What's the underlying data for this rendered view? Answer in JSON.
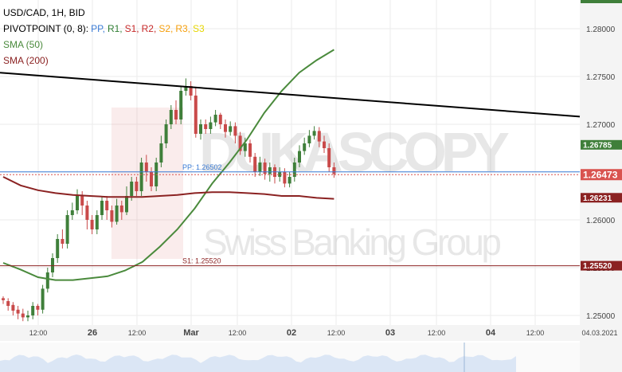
{
  "legend": {
    "symbol_line": "USD/CAD, 1H, BID",
    "pivot_label": "PIVOTPOINT (0, 8):",
    "pivot_items": [
      {
        "label": "PP,",
        "color": "#3a7bd5"
      },
      {
        "label": "R1,",
        "color": "#2e7d32"
      },
      {
        "label": "S1,",
        "color": "#c62828"
      },
      {
        "label": "R2,",
        "color": "#c62828"
      },
      {
        "label": "S2,",
        "color": "#f59e0b"
      },
      {
        "label": "R3,",
        "color": "#f59e0b"
      },
      {
        "label": "S3",
        "color": "#e6d600"
      }
    ],
    "sma50": "SMA (50)",
    "sma200": "SMA (200)"
  },
  "watermark": {
    "brand": "DUKASCOPY",
    "tagline": "Swiss Banking Group"
  },
  "chart_data": {
    "type": "candlestick",
    "title": "USD/CAD, 1H, BID",
    "y_ticks": [
      "1.25000",
      "1.25500",
      "1.26000",
      "1.26500",
      "1.27000",
      "1.27500",
      "1.28000"
    ],
    "ylim": [
      1.249,
      1.283
    ],
    "x_ticks": [
      "12:00",
      "26",
      "12:00",
      "Mar",
      "12:00",
      "02",
      "12:00",
      "03",
      "12:00",
      "04",
      "12:00",
      "04.03.2021"
    ],
    "grid": true,
    "series": [
      {
        "name": "SMA (50)",
        "color": "#4a8a3c",
        "values": [
          1.2555,
          1.2548,
          1.254,
          1.2537,
          1.2537,
          1.2539,
          1.2541,
          1.2547,
          1.2556,
          1.2572,
          1.259,
          1.2612,
          1.2638,
          1.266,
          1.2684,
          1.2712,
          1.2735,
          1.2754,
          1.2767,
          1.2778
        ]
      },
      {
        "name": "SMA (200)",
        "color": "#8b2222",
        "values": [
          1.2645,
          1.2636,
          1.2631,
          1.2628,
          1.2626,
          1.2625,
          1.2624,
          1.2624,
          1.2624,
          1.2625,
          1.2626,
          1.2628,
          1.2629,
          1.2629,
          1.2628,
          1.2627,
          1.2625,
          1.2625,
          1.2623,
          1.2622
        ]
      }
    ],
    "trendline": {
      "color": "#000000",
      "start": 1.2754,
      "end": 1.2708
    },
    "candles": [
      [
        1.2518,
        1.2516,
        1.252,
        1.2512
      ],
      [
        1.2515,
        1.251,
        1.2518,
        1.2505
      ],
      [
        1.2511,
        1.2505,
        1.2514,
        1.25
      ],
      [
        1.2506,
        1.2502,
        1.251,
        1.2496
      ],
      [
        1.2502,
        1.2498,
        1.2507,
        1.2494
      ],
      [
        1.2498,
        1.25,
        1.2505,
        1.2494
      ],
      [
        1.25,
        1.251,
        1.2514,
        1.2496
      ],
      [
        1.251,
        1.2506,
        1.2512,
        1.25
      ],
      [
        1.2506,
        1.2528,
        1.2532,
        1.2502
      ],
      [
        1.2528,
        1.2545,
        1.255,
        1.2524
      ],
      [
        1.2545,
        1.256,
        1.2565,
        1.254
      ],
      [
        1.256,
        1.258,
        1.2585,
        1.2555
      ],
      [
        1.258,
        1.2575,
        1.259,
        1.257
      ],
      [
        1.2575,
        1.2605,
        1.261,
        1.257
      ],
      [
        1.2605,
        1.261,
        1.2618,
        1.26
      ],
      [
        1.261,
        1.2625,
        1.2632,
        1.2606
      ],
      [
        1.2625,
        1.2615,
        1.263,
        1.2605
      ],
      [
        1.2615,
        1.26,
        1.262,
        1.259
      ],
      [
        1.26,
        1.259,
        1.2605,
        1.2585
      ],
      [
        1.259,
        1.2605,
        1.261,
        1.2585
      ],
      [
        1.2605,
        1.262,
        1.2625,
        1.26
      ],
      [
        1.262,
        1.261,
        1.2625,
        1.26
      ],
      [
        1.261,
        1.2598,
        1.2615,
        1.2592
      ],
      [
        1.2598,
        1.2615,
        1.2622,
        1.2595
      ],
      [
        1.2615,
        1.2608,
        1.262,
        1.26
      ],
      [
        1.2608,
        1.2625,
        1.2635,
        1.2605
      ],
      [
        1.2625,
        1.264,
        1.2645,
        1.262
      ],
      [
        1.264,
        1.263,
        1.2645,
        1.2625
      ],
      [
        1.263,
        1.266,
        1.2665,
        1.2625
      ],
      [
        1.266,
        1.265,
        1.2668,
        1.264
      ],
      [
        1.265,
        1.2635,
        1.2655,
        1.263
      ],
      [
        1.2635,
        1.266,
        1.2665,
        1.263
      ],
      [
        1.266,
        1.268,
        1.2688,
        1.2655
      ],
      [
        1.268,
        1.27,
        1.2705,
        1.2675
      ],
      [
        1.27,
        1.2715,
        1.272,
        1.2695
      ],
      [
        1.2715,
        1.2705,
        1.2725,
        1.27
      ],
      [
        1.2705,
        1.2735,
        1.274,
        1.27
      ],
      [
        1.2735,
        1.274,
        1.2748,
        1.273
      ],
      [
        1.274,
        1.273,
        1.2745,
        1.2725
      ],
      [
        1.273,
        1.269,
        1.2738,
        1.2686
      ],
      [
        1.269,
        1.27,
        1.2705,
        1.2684
      ],
      [
        1.27,
        1.2695,
        1.2705,
        1.269
      ],
      [
        1.2695,
        1.2702,
        1.2708,
        1.269
      ],
      [
        1.2702,
        1.271,
        1.2715,
        1.2698
      ],
      [
        1.271,
        1.27,
        1.2712,
        1.2695
      ],
      [
        1.27,
        1.2692,
        1.2705,
        1.2686
      ],
      [
        1.2692,
        1.2698,
        1.2703,
        1.2688
      ],
      [
        1.2698,
        1.2688,
        1.2702,
        1.268
      ],
      [
        1.2688,
        1.2672,
        1.2692,
        1.2668
      ],
      [
        1.2672,
        1.268,
        1.2686,
        1.2666
      ],
      [
        1.268,
        1.2666,
        1.2684,
        1.266
      ],
      [
        1.2666,
        1.265,
        1.267,
        1.2645
      ],
      [
        1.265,
        1.266,
        1.2666,
        1.2646
      ],
      [
        1.266,
        1.2648,
        1.2664,
        1.2642
      ],
      [
        1.2648,
        1.2655,
        1.266,
        1.264
      ],
      [
        1.2655,
        1.2645,
        1.2658,
        1.2638
      ],
      [
        1.2645,
        1.265,
        1.2655,
        1.264
      ],
      [
        1.265,
        1.2638,
        1.2654,
        1.2634
      ],
      [
        1.2638,
        1.2645,
        1.265,
        1.2634
      ],
      [
        1.2645,
        1.266,
        1.2665,
        1.264
      ],
      [
        1.266,
        1.2672,
        1.2678,
        1.2655
      ],
      [
        1.2672,
        1.268,
        1.2686,
        1.2668
      ],
      [
        1.268,
        1.2688,
        1.2694,
        1.2676
      ],
      [
        1.2688,
        1.2693,
        1.2698,
        1.2684
      ],
      [
        1.2693,
        1.2682,
        1.2697,
        1.2676
      ],
      [
        1.2682,
        1.2675,
        1.2688,
        1.267
      ],
      [
        1.2675,
        1.2655,
        1.268,
        1.265
      ],
      [
        1.2655,
        1.2648,
        1.266,
        1.2644
      ]
    ],
    "pivot_lines": [
      {
        "label": "PP: 1.26502",
        "value": 1.26502,
        "color": "#3a7bd5"
      },
      {
        "label": "S1: 1.25520",
        "value": 1.2552,
        "color": "#8b2222"
      }
    ],
    "price_tags": [
      {
        "text": "1.26785",
        "value": 1.26785,
        "color": "#3f7f3a"
      },
      {
        "text": "1.26473",
        "value": 1.26473,
        "color": "#d9534f"
      },
      {
        "text": "1.26231",
        "value": 1.26231,
        "color": "#8b2222"
      },
      {
        "text": "1.25520",
        "value": 1.2552,
        "color": "#8b2222"
      }
    ],
    "colors": {
      "up": "#3f7f3a",
      "down": "#c94a4a"
    }
  }
}
